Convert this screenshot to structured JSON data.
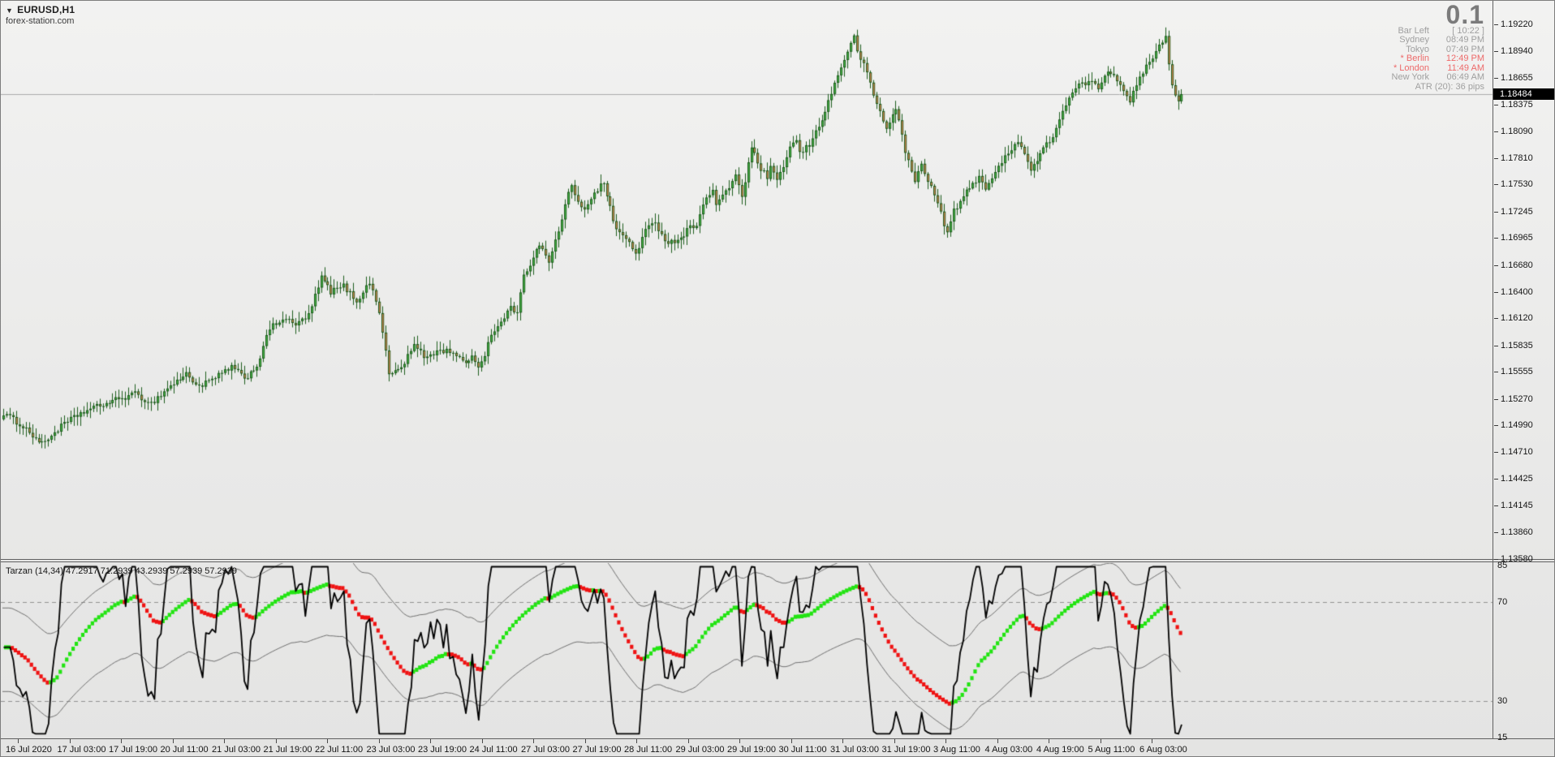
{
  "header": {
    "symbol": "EURUSD,H1",
    "dropdown_glyph": "▼",
    "watermark": "forex-station.com"
  },
  "info_panel": {
    "lot_size": "0.1",
    "rows": [
      {
        "label": "Bar Left",
        "value": "[ 10:22 ]",
        "highlight": false
      },
      {
        "label": "Sydney",
        "value": "08:49 PM",
        "highlight": false
      },
      {
        "label": "Tokyo",
        "value": "07:49 PM",
        "highlight": false
      },
      {
        "label": "* Berlin",
        "value": "12:49 PM",
        "highlight": true
      },
      {
        "label": "* London",
        "value": "11:49 AM",
        "highlight": true
      },
      {
        "label": "New York",
        "value": "06:49 AM",
        "highlight": false
      }
    ],
    "atr_text": "ATR (20): 36 pips",
    "text_color": "#9f9f9f",
    "highlight_color": "#ed6a6a"
  },
  "indicator_panel": {
    "label": "Tarzan (14,34) 47.2917 71.2939 43.2939 57.2939 57.2939"
  },
  "price_axis": {
    "current_price_label": "1.18484"
  },
  "chart_data": {
    "type": "candlestick",
    "title": "EURUSD,H1",
    "ylim": [
      1.1358,
      1.1922
    ],
    "price_axis_ticks": [
      1.1922,
      1.1894,
      1.18655,
      1.18375,
      1.1809,
      1.1781,
      1.1753,
      1.17245,
      1.16965,
      1.1668,
      1.164,
      1.1612,
      1.15835,
      1.15555,
      1.1527,
      1.1499,
      1.1471,
      1.14425,
      1.14145,
      1.1386,
      1.1358
    ],
    "current_price": 1.18484,
    "time_ticks": [
      "16 Jul 2020",
      "17 Jul 03:00",
      "17 Jul 19:00",
      "20 Jul 11:00",
      "21 Jul 03:00",
      "21 Jul 19:00",
      "22 Jul 11:00",
      "23 Jul 03:00",
      "23 Jul 19:00",
      "24 Jul 11:00",
      "27 Jul 03:00",
      "27 Jul 19:00",
      "28 Jul 11:00",
      "29 Jul 03:00",
      "29 Jul 19:00",
      "30 Jul 11:00",
      "31 Jul 03:00",
      "31 Jul 19:00",
      "3 Aug 11:00",
      "4 Aug 03:00",
      "4 Aug 19:00",
      "5 Aug 11:00",
      "6 Aug 03:00"
    ],
    "bars_total": 368,
    "close_path_anchors": [
      [
        0,
        1.1512
      ],
      [
        6,
        1.1498
      ],
      [
        12,
        1.1479
      ],
      [
        18,
        1.1498
      ],
      [
        24,
        1.1512
      ],
      [
        30,
        1.152
      ],
      [
        36,
        1.1527
      ],
      [
        41,
        1.1532
      ],
      [
        46,
        1.1522
      ],
      [
        52,
        1.1541
      ],
      [
        57,
        1.1553
      ],
      [
        61,
        1.154
      ],
      [
        66,
        1.1549
      ],
      [
        71,
        1.1561
      ],
      [
        75,
        1.1548
      ],
      [
        79,
        1.1562
      ],
      [
        83,
        1.1601
      ],
      [
        87,
        1.1612
      ],
      [
        91,
        1.1605
      ],
      [
        95,
        1.1615
      ],
      [
        99,
        1.1655
      ],
      [
        102,
        1.164
      ],
      [
        106,
        1.1646
      ],
      [
        110,
        1.163
      ],
      [
        114,
        1.165
      ],
      [
        117,
        1.162
      ],
      [
        120,
        1.1553
      ],
      [
        124,
        1.156
      ],
      [
        128,
        1.1584
      ],
      [
        131,
        1.1571
      ],
      [
        136,
        1.1578
      ],
      [
        140,
        1.1577
      ],
      [
        144,
        1.1562
      ],
      [
        146,
        1.1575
      ],
      [
        148,
        1.1559
      ],
      [
        150,
        1.1575
      ],
      [
        152,
        1.1596
      ],
      [
        156,
        1.1611
      ],
      [
        158,
        1.1626
      ],
      [
        160,
        1.1615
      ],
      [
        162,
        1.166
      ],
      [
        164,
        1.1668
      ],
      [
        166,
        1.1688
      ],
      [
        168,
        1.1685
      ],
      [
        170,
        1.167
      ],
      [
        173,
        1.1705
      ],
      [
        176,
        1.1744
      ],
      [
        177,
        1.175
      ],
      [
        179,
        1.1733
      ],
      [
        181,
        1.1728
      ],
      [
        184,
        1.1745
      ],
      [
        187,
        1.1755
      ],
      [
        189,
        1.1728
      ],
      [
        191,
        1.1706
      ],
      [
        193,
        1.1698
      ],
      [
        195,
        1.1692
      ],
      [
        197,
        1.168
      ],
      [
        200,
        1.1705
      ],
      [
        203,
        1.1712
      ],
      [
        207,
        1.1691
      ],
      [
        211,
        1.1697
      ],
      [
        213,
        1.1705
      ],
      [
        216,
        1.1712
      ],
      [
        218,
        1.1733
      ],
      [
        221,
        1.1746
      ],
      [
        222,
        1.1733
      ],
      [
        225,
        1.1744
      ],
      [
        228,
        1.1764
      ],
      [
        230,
        1.174
      ],
      [
        233,
        1.1792
      ],
      [
        235,
        1.1775
      ],
      [
        238,
        1.176
      ],
      [
        239,
        1.1771
      ],
      [
        241,
        1.1755
      ],
      [
        245,
        1.1792
      ],
      [
        247,
        1.18
      ],
      [
        248,
        1.1785
      ],
      [
        251,
        1.1795
      ],
      [
        254,
        1.1815
      ],
      [
        257,
        1.184
      ],
      [
        261,
        1.1878
      ],
      [
        265,
        1.1908
      ],
      [
        266,
        1.1895
      ],
      [
        269,
        1.187
      ],
      [
        271,
        1.1848
      ],
      [
        275,
        1.1811
      ],
      [
        278,
        1.1835
      ],
      [
        281,
        1.1788
      ],
      [
        284,
        1.1756
      ],
      [
        286,
        1.1775
      ],
      [
        290,
        1.1742
      ],
      [
        294,
        1.1702
      ],
      [
        296,
        1.1725
      ],
      [
        300,
        1.1745
      ],
      [
        304,
        1.1762
      ],
      [
        306,
        1.175
      ],
      [
        310,
        1.177
      ],
      [
        313,
        1.1788
      ],
      [
        316,
        1.18
      ],
      [
        318,
        1.1785
      ],
      [
        320,
        1.1768
      ],
      [
        323,
        1.1785
      ],
      [
        327,
        1.1805
      ],
      [
        330,
        1.183
      ],
      [
        334,
        1.1855
      ],
      [
        338,
        1.1862
      ],
      [
        341,
        1.1855
      ],
      [
        344,
        1.1875
      ],
      [
        348,
        1.186
      ],
      [
        351,
        1.1842
      ],
      [
        354,
        1.1864
      ],
      [
        357,
        1.1884
      ],
      [
        360,
        1.1898
      ],
      [
        362,
        1.1912
      ],
      [
        363,
        1.188
      ],
      [
        364,
        1.1858
      ],
      [
        365,
        1.185
      ],
      [
        366,
        1.1842
      ],
      [
        367,
        1.18484
      ]
    ],
    "candle_colors": {
      "bull_fill": "#43ad43",
      "bear_fill": "#c8804e",
      "outline": "#1d5c1d",
      "price_line": "#ababab"
    },
    "oscillator": {
      "name": "Tarzan",
      "params": "(14,34)",
      "current_values": [
        47.2917,
        71.2939,
        43.2939,
        57.2939,
        57.2939
      ],
      "ylim": [
        15,
        85
      ],
      "scale_ticks": [
        85,
        70,
        30,
        15
      ],
      "dashed_levels": [
        70,
        30
      ],
      "colors": {
        "fast_line": "#000000",
        "up": "#22e412",
        "down": "#ef1212",
        "band": "#6f6f6f",
        "level": "#909090"
      }
    }
  }
}
